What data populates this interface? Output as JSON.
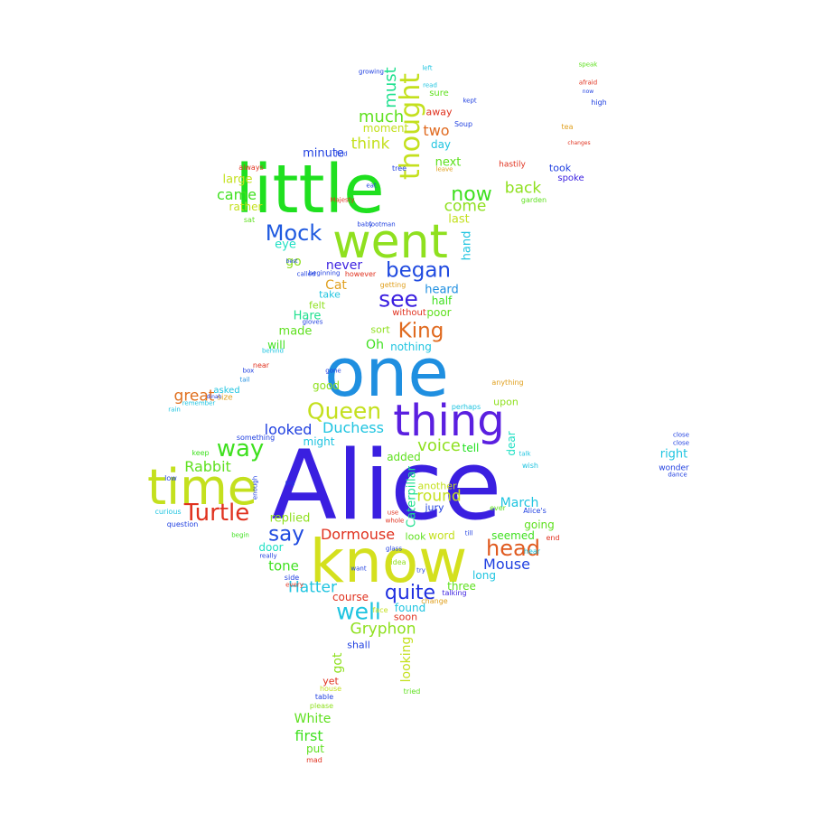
{
  "words": [
    {
      "text": "Alice",
      "color": "#3a1fe0"
    },
    {
      "text": "know",
      "color": "#d4e01e"
    },
    {
      "text": "little",
      "color": "#1fe01f"
    },
    {
      "text": "one",
      "color": "#1f8fe0"
    },
    {
      "text": "went",
      "color": "#8fe01f"
    },
    {
      "text": "thing",
      "color": "#5a1fe0"
    },
    {
      "text": "time",
      "color": "#c4e01e"
    },
    {
      "text": "Queen",
      "color": "#c4e01e"
    },
    {
      "text": "thought",
      "color": "#c4e01e"
    },
    {
      "text": "Turtle",
      "color": "#e0321f"
    },
    {
      "text": "head",
      "color": "#e05a1f"
    },
    {
      "text": "way",
      "color": "#3fe01f"
    },
    {
      "text": "Mock",
      "color": "#1f5ae0"
    },
    {
      "text": "say",
      "color": "#1f4ae0"
    },
    {
      "text": "see",
      "color": "#3a1fe0"
    },
    {
      "text": "began",
      "color": "#1f4ae0"
    },
    {
      "text": "well",
      "color": "#1fc4e0"
    },
    {
      "text": "now",
      "color": "#3fe01f"
    },
    {
      "text": "King",
      "color": "#e06a1f"
    },
    {
      "text": "quite",
      "color": "#1f2fe0"
    },
    {
      "text": "Gryphon",
      "color": "#8fe01f"
    },
    {
      "text": "Hatter",
      "color": "#1fc4e0"
    },
    {
      "text": "Rabbit",
      "color": "#5fe01f"
    },
    {
      "text": "Mouse",
      "color": "#1f3fe0"
    },
    {
      "text": "Dormouse",
      "color": "#e0321f"
    },
    {
      "text": "voice",
      "color": "#8fe01f"
    },
    {
      "text": "round",
      "color": "#c4e01e"
    },
    {
      "text": "much",
      "color": "#5fe01f"
    },
    {
      "text": "must",
      "color": "#1fe08f"
    },
    {
      "text": "back",
      "color": "#8fe01f"
    },
    {
      "text": "think",
      "color": "#c4e01e"
    },
    {
      "text": "came",
      "color": "#3fe01f"
    },
    {
      "text": "come",
      "color": "#8fe01f"
    },
    {
      "text": "great",
      "color": "#e0701f"
    },
    {
      "text": "looked",
      "color": "#1f3fe0"
    },
    {
      "text": "Duchess",
      "color": "#1fc4e0"
    },
    {
      "text": "first",
      "color": "#3fe01f"
    },
    {
      "text": "tone",
      "color": "#3fe01f"
    },
    {
      "text": "White",
      "color": "#5fe01f"
    },
    {
      "text": "two",
      "color": "#e06a1f"
    },
    {
      "text": "never",
      "color": "#3a1fe0"
    },
    {
      "text": "go",
      "color": "#8fe01f"
    },
    {
      "text": "Cat",
      "color": "#e0a01f"
    },
    {
      "text": "got",
      "color": "#8fe01f"
    },
    {
      "text": "looking",
      "color": "#c4e01e"
    },
    {
      "text": "Caterpillar",
      "color": "#1fe08f"
    },
    {
      "text": "March",
      "color": "#1fc4e0"
    },
    {
      "text": "right",
      "color": "#1fc4e0"
    },
    {
      "text": "replied",
      "color": "#8fe01f"
    },
    {
      "text": "made",
      "color": "#5fe01f"
    },
    {
      "text": "Hare",
      "color": "#1fe08f"
    },
    {
      "text": "Oh",
      "color": "#3fe01f"
    },
    {
      "text": "nothing",
      "color": "#1fc4e0"
    },
    {
      "text": "hand",
      "color": "#1fc4e0"
    },
    {
      "text": "heard",
      "color": "#1f8fe0"
    },
    {
      "text": "minute",
      "color": "#1f3fe0"
    },
    {
      "text": "next",
      "color": "#5fe01f"
    },
    {
      "text": "day",
      "color": "#1fc4e0"
    },
    {
      "text": "moment",
      "color": "#c4e01e"
    },
    {
      "text": "large",
      "color": "#c4e01e"
    },
    {
      "text": "rather",
      "color": "#c4e01e"
    },
    {
      "text": "eye",
      "color": "#1fe0c4"
    },
    {
      "text": "last",
      "color": "#c4e01e"
    },
    {
      "text": "half",
      "color": "#3fe01f"
    },
    {
      "text": "poor",
      "color": "#5fe01f"
    },
    {
      "text": "sort",
      "color": "#8fe01f"
    },
    {
      "text": "took",
      "color": "#1f3fe0"
    },
    {
      "text": "spoke",
      "color": "#3a1fe0"
    },
    {
      "text": "seemed",
      "color": "#3fe01f"
    },
    {
      "text": "going",
      "color": "#5fe01f"
    },
    {
      "text": "long",
      "color": "#1fc4e0"
    },
    {
      "text": "three",
      "color": "#5fe01f"
    },
    {
      "text": "word",
      "color": "#c4e01e"
    },
    {
      "text": "look",
      "color": "#5fe01f"
    },
    {
      "text": "might",
      "color": "#1fc4e0"
    },
    {
      "text": "good",
      "color": "#8fe01f"
    },
    {
      "text": "tell",
      "color": "#1fe01f"
    },
    {
      "text": "dear",
      "color": "#1fe0c4"
    },
    {
      "text": "upon",
      "color": "#8fe01f"
    },
    {
      "text": "added",
      "color": "#5fe01f"
    },
    {
      "text": "another",
      "color": "#c4e01e"
    },
    {
      "text": "course",
      "color": "#e0321f"
    },
    {
      "text": "found",
      "color": "#1fc4e0"
    },
    {
      "text": "soon",
      "color": "#e0321f"
    },
    {
      "text": "shall",
      "color": "#1f3fe0"
    },
    {
      "text": "yet",
      "color": "#e0321f"
    },
    {
      "text": "put",
      "color": "#5fe01f"
    },
    {
      "text": "felt",
      "color": "#8fe01f"
    },
    {
      "text": "take",
      "color": "#1fc4e0"
    },
    {
      "text": "will",
      "color": "#3fe01f"
    },
    {
      "text": "asked",
      "color": "#1fc4e0"
    },
    {
      "text": "size",
      "color": "#e0a01f"
    },
    {
      "text": "sure",
      "color": "#5fe01f"
    },
    {
      "text": "away",
      "color": "#e0321f"
    },
    {
      "text": "door",
      "color": "#1fe0c4"
    },
    {
      "text": "jury",
      "color": "#1f3fe0"
    },
    {
      "text": "wonder",
      "color": "#1f3fe0"
    },
    {
      "text": "high",
      "color": "#1f3fe0"
    },
    {
      "text": "speak",
      "color": "#5fe01f"
    },
    {
      "text": "hastily",
      "color": "#e0321f"
    },
    {
      "text": "garden",
      "color": "#5fe01f"
    },
    {
      "text": "without",
      "color": "#e0321f"
    },
    {
      "text": "end",
      "color": "#e0321f"
    },
    {
      "text": "Alice's",
      "color": "#1f3fe0"
    },
    {
      "text": "ever",
      "color": "#5fe01f"
    },
    {
      "text": "table",
      "color": "#1f3fe0"
    },
    {
      "text": "house",
      "color": "#c4e01e"
    },
    {
      "text": "please",
      "color": "#8fe01f"
    },
    {
      "text": "mad",
      "color": "#e0321f"
    },
    {
      "text": "side",
      "color": "#1f3fe0"
    },
    {
      "text": "Soup",
      "color": "#1f3fe0"
    },
    {
      "text": "anything",
      "color": "#e0a01f"
    },
    {
      "text": "perhaps",
      "color": "#1fc4e0"
    },
    {
      "text": "something",
      "color": "#1f3fe0"
    },
    {
      "text": "question",
      "color": "#1f3fe0"
    },
    {
      "text": "curious",
      "color": "#1fc4e0"
    },
    {
      "text": "keep",
      "color": "#3fe01f"
    },
    {
      "text": "remember",
      "color": "#1fc4e0"
    },
    {
      "text": "rain",
      "color": "#1fc4e0"
    },
    {
      "text": "near",
      "color": "#e0321f"
    },
    {
      "text": "box",
      "color": "#1f3fe0"
    },
    {
      "text": "tail",
      "color": "#1f8fe0"
    },
    {
      "text": "behind",
      "color": "#1fc4e0"
    },
    {
      "text": "always",
      "color": "#e0321f"
    },
    {
      "text": "sat",
      "color": "#5fe01f"
    },
    {
      "text": "best",
      "color": "#1f3fe0"
    },
    {
      "text": "however",
      "color": "#e0321f"
    },
    {
      "text": "getting",
      "color": "#e0a01f"
    },
    {
      "text": "beginning",
      "color": "#1f3fe0"
    },
    {
      "text": "tried",
      "color": "#5fe01f"
    },
    {
      "text": "talking",
      "color": "#3a1fe0"
    },
    {
      "text": "change",
      "color": "#e0a01f"
    },
    {
      "text": "idea",
      "color": "#8fe01f"
    },
    {
      "text": "try",
      "color": "#1f3fe0"
    },
    {
      "text": "face",
      "color": "#c4e01e"
    },
    {
      "text": "really",
      "color": "#1f3fe0"
    },
    {
      "text": "begin",
      "color": "#3fe01f"
    },
    {
      "text": "close",
      "color": "#1f3fe0"
    },
    {
      "text": "dance",
      "color": "#1f3fe0"
    },
    {
      "text": "low",
      "color": "#1f3fe0"
    },
    {
      "text": "hear",
      "color": "#1fc4e0"
    },
    {
      "text": "wish",
      "color": "#1fc4e0"
    },
    {
      "text": "talk",
      "color": "#1fc4e0"
    },
    {
      "text": "close",
      "color": "#1f3fe0"
    },
    {
      "text": "afraid",
      "color": "#e0321f"
    },
    {
      "text": "now",
      "color": "#1f3fe0"
    },
    {
      "text": "tea",
      "color": "#e0a01f"
    },
    {
      "text": "changes",
      "color": "#e0321f"
    },
    {
      "text": "Majesty",
      "color": "#e0321f"
    },
    {
      "text": "footman",
      "color": "#1f3fe0"
    },
    {
      "text": "baby",
      "color": "#1f3fe0"
    },
    {
      "text": "tree",
      "color": "#1f3fe0"
    },
    {
      "text": "leave",
      "color": "#e0a01f"
    },
    {
      "text": "eat",
      "color": "#1f3fe0"
    },
    {
      "text": "growing",
      "color": "#1f3fe0"
    },
    {
      "text": "read",
      "color": "#1fc4e0"
    },
    {
      "text": "left",
      "color": "#1fc4e0"
    },
    {
      "text": "kept",
      "color": "#1f3fe0"
    },
    {
      "text": "find",
      "color": "#1f3fe0"
    },
    {
      "text": "gone",
      "color": "#1f3fe0"
    },
    {
      "text": "called",
      "color": "#1f3fe0"
    },
    {
      "text": "every",
      "color": "#e0321f"
    },
    {
      "text": "glass",
      "color": "#1f3fe0"
    },
    {
      "text": "use",
      "color": "#e0321f"
    },
    {
      "text": "till",
      "color": "#1f3fe0"
    },
    {
      "text": "whole",
      "color": "#e0321f"
    },
    {
      "text": "want",
      "color": "#1f3fe0"
    },
    {
      "text": "gloves",
      "color": "#1f3fe0"
    },
    {
      "text": "pig",
      "color": "#1f3fe0"
    },
    {
      "text": "enough",
      "color": "#1f3fe0"
    },
    {
      "text": "dinah",
      "color": "#1f3fe0"
    }
  ]
}
